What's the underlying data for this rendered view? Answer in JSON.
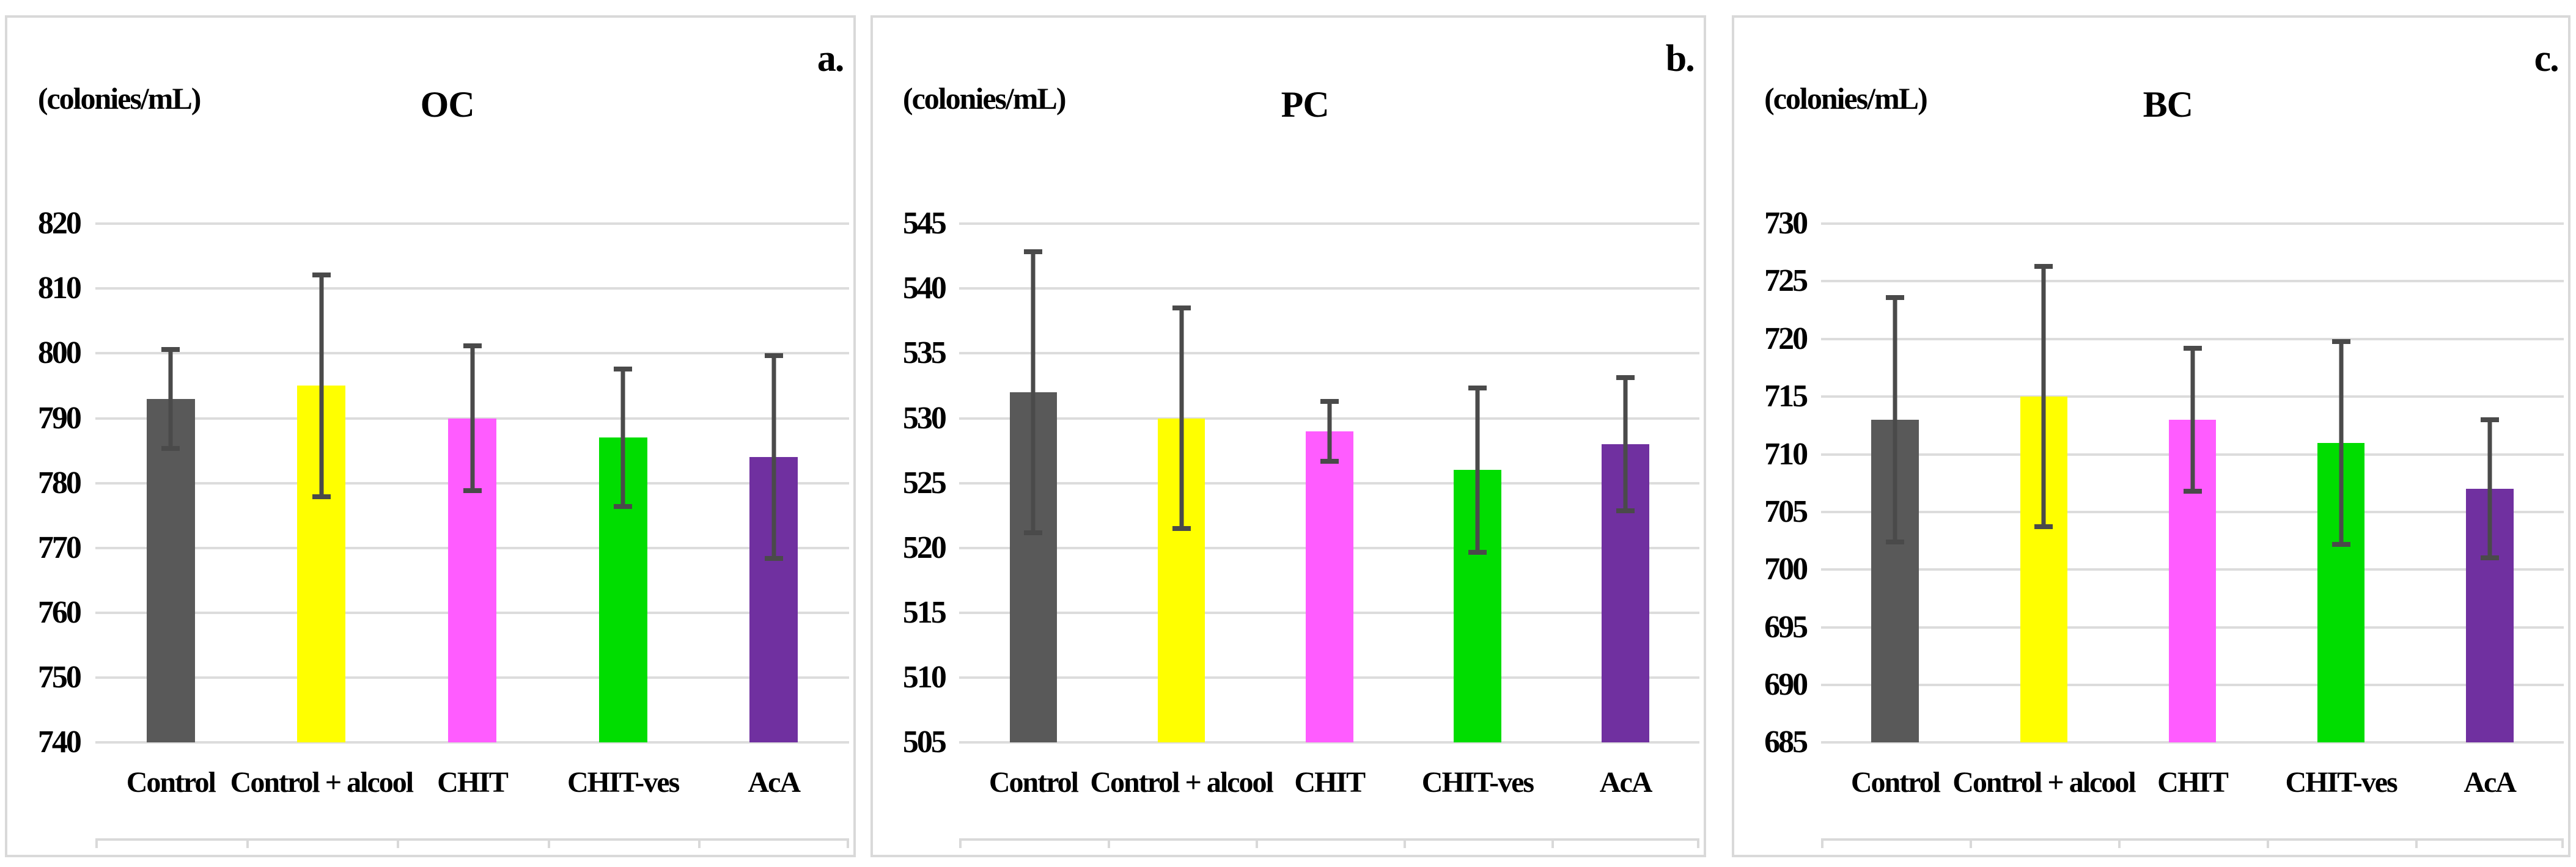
{
  "figure": {
    "unit_label": "(colonies/mL)",
    "categories": [
      "Control",
      "Control + alcool",
      "CHIT",
      "CHIT-ves",
      "AcA"
    ],
    "bar_colors": [
      "#595959",
      "#FFFF00",
      "#FF5CFF",
      "#00DD00",
      "#7030A0"
    ],
    "error_bar_color": "#4a4a4a",
    "gridline_color": "#dcdcdc",
    "panel_border_color": "#d9d9d9",
    "text_color": "#000000"
  },
  "chart_data": [
    {
      "type": "bar",
      "panel_letter": "a.",
      "title": "OC",
      "ylabel": "(colonies/mL)",
      "categories": [
        "Control",
        "Control + alcool",
        "CHIT",
        "CHIT-ves",
        "AcA"
      ],
      "values": [
        793,
        795,
        790,
        787,
        784
      ],
      "errors": [
        8,
        17.5,
        11.5,
        11,
        16
      ],
      "ylim": [
        740,
        820
      ],
      "ytick_step": 10,
      "yticks": [
        740,
        750,
        760,
        770,
        780,
        790,
        800,
        810,
        820
      ],
      "grid": "on",
      "legend": "none"
    },
    {
      "type": "bar",
      "panel_letter": "b.",
      "title": "PC",
      "ylabel": "(colonies/mL)",
      "categories": [
        "Control",
        "Control + alcool",
        "CHIT",
        "CHIT-ves",
        "AcA"
      ],
      "values": [
        532,
        530,
        529,
        526,
        528
      ],
      "errors": [
        11,
        8.7,
        2.5,
        6.5,
        5.3
      ],
      "ylim": [
        505,
        545
      ],
      "ytick_step": 5,
      "yticks": [
        505,
        510,
        515,
        520,
        525,
        530,
        535,
        540,
        545
      ],
      "grid": "on",
      "legend": "none"
    },
    {
      "type": "bar",
      "panel_letter": "c.",
      "title": "BC",
      "ylabel": "(colonies/mL)",
      "categories": [
        "Control",
        "Control + alcool",
        "CHIT",
        "CHIT-ves",
        "AcA"
      ],
      "values": [
        713,
        715,
        713,
        711,
        707
      ],
      "errors": [
        10.8,
        11.5,
        6.4,
        9,
        6.2
      ],
      "ylim": [
        685,
        730
      ],
      "ytick_step": 5,
      "yticks": [
        685,
        690,
        695,
        700,
        705,
        710,
        715,
        720,
        725,
        730
      ],
      "grid": "on",
      "legend": "none"
    }
  ]
}
